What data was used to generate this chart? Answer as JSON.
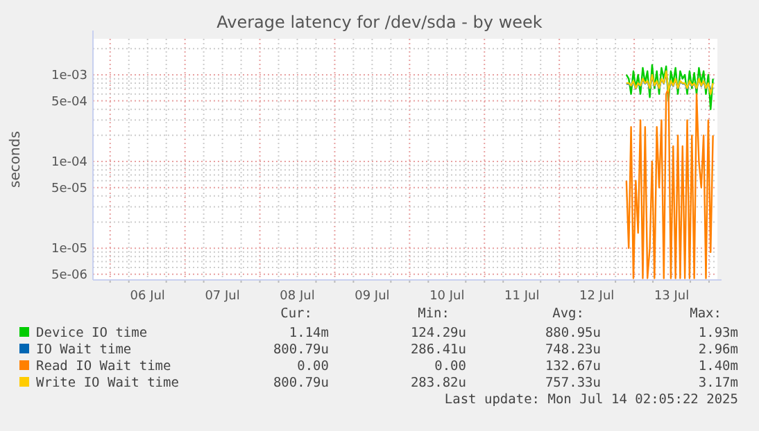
{
  "chart_data": {
    "type": "line",
    "title": "Average latency for /dev/sda - by week",
    "ylabel": "seconds",
    "log": "y",
    "grid": true,
    "legend": "bottom",
    "marker": "none",
    "line_style": "solid",
    "x": [
      "2025-07-12T21:30",
      "2025-07-12T22:15",
      "2025-07-12T23:00",
      "2025-07-12T23:45",
      "2025-07-13T00:30",
      "2025-07-13T01:15",
      "2025-07-13T02:00",
      "2025-07-13T02:45",
      "2025-07-13T03:30",
      "2025-07-13T04:15",
      "2025-07-13T05:00",
      "2025-07-13T05:45",
      "2025-07-13T06:30",
      "2025-07-13T07:15",
      "2025-07-13T08:00",
      "2025-07-13T08:45",
      "2025-07-13T09:30",
      "2025-07-13T10:15",
      "2025-07-13T11:00",
      "2025-07-13T11:45",
      "2025-07-13T12:30",
      "2025-07-13T13:15",
      "2025-07-13T14:00",
      "2025-07-13T14:45",
      "2025-07-13T15:30",
      "2025-07-13T16:15",
      "2025-07-13T17:00",
      "2025-07-13T17:45",
      "2025-07-13T18:30",
      "2025-07-13T19:15",
      "2025-07-13T20:00",
      "2025-07-13T20:45",
      "2025-07-13T21:30",
      "2025-07-13T22:15",
      "2025-07-13T23:00",
      "2025-07-13T23:45",
      "2025-07-14T00:30",
      "2025-07-14T01:15"
    ],
    "xlim": [
      "2025-07-05T18:30",
      "2025-07-14T02:40"
    ],
    "xticks": [
      {
        "value": "2025-07-06T00:00",
        "label": null
      },
      {
        "value": "2025-07-06T06:00",
        "label": null
      },
      {
        "value": "2025-07-06T12:00",
        "label": "06 Jul"
      },
      {
        "value": "2025-07-06T18:00",
        "label": null
      },
      {
        "value": "2025-07-07T00:00",
        "label": null
      },
      {
        "value": "2025-07-07T06:00",
        "label": null
      },
      {
        "value": "2025-07-07T12:00",
        "label": "07 Jul"
      },
      {
        "value": "2025-07-07T18:00",
        "label": null
      },
      {
        "value": "2025-07-08T00:00",
        "label": null
      },
      {
        "value": "2025-07-08T06:00",
        "label": null
      },
      {
        "value": "2025-07-08T12:00",
        "label": "08 Jul"
      },
      {
        "value": "2025-07-08T18:00",
        "label": null
      },
      {
        "value": "2025-07-09T00:00",
        "label": null
      },
      {
        "value": "2025-07-09T06:00",
        "label": null
      },
      {
        "value": "2025-07-09T12:00",
        "label": "09 Jul"
      },
      {
        "value": "2025-07-09T18:00",
        "label": null
      },
      {
        "value": "2025-07-10T00:00",
        "label": null
      },
      {
        "value": "2025-07-10T06:00",
        "label": null
      },
      {
        "value": "2025-07-10T12:00",
        "label": "10 Jul"
      },
      {
        "value": "2025-07-10T18:00",
        "label": null
      },
      {
        "value": "2025-07-11T00:00",
        "label": null
      },
      {
        "value": "2025-07-11T06:00",
        "label": null
      },
      {
        "value": "2025-07-11T12:00",
        "label": "11 Jul"
      },
      {
        "value": "2025-07-11T18:00",
        "label": null
      },
      {
        "value": "2025-07-12T00:00",
        "label": null
      },
      {
        "value": "2025-07-12T06:00",
        "label": null
      },
      {
        "value": "2025-07-12T12:00",
        "label": "12 Jul"
      },
      {
        "value": "2025-07-12T18:00",
        "label": null
      },
      {
        "value": "2025-07-13T00:00",
        "label": null
      },
      {
        "value": "2025-07-13T06:00",
        "label": null
      },
      {
        "value": "2025-07-13T12:00",
        "label": "13 Jul"
      },
      {
        "value": "2025-07-13T18:00",
        "label": null
      },
      {
        "value": "2025-07-14T00:00",
        "label": null
      }
    ],
    "ylim": [
      4.3e-06,
      0.0026
    ],
    "yticks": [
      {
        "value": 5e-06,
        "label": "5e-06"
      },
      {
        "value": 6e-06,
        "label": null
      },
      {
        "value": 7e-06,
        "label": null
      },
      {
        "value": 8e-06,
        "label": null
      },
      {
        "value": 9e-06,
        "label": null
      },
      {
        "value": 1e-05,
        "label": "1e-05"
      },
      {
        "value": 2e-05,
        "label": null
      },
      {
        "value": 3e-05,
        "label": null
      },
      {
        "value": 4e-05,
        "label": null
      },
      {
        "value": 5e-05,
        "label": "5e-05"
      },
      {
        "value": 6e-05,
        "label": null
      },
      {
        "value": 7e-05,
        "label": null
      },
      {
        "value": 8e-05,
        "label": null
      },
      {
        "value": 9e-05,
        "label": null
      },
      {
        "value": 0.0001,
        "label": "1e-04"
      },
      {
        "value": 0.0002,
        "label": null
      },
      {
        "value": 0.0003,
        "label": null
      },
      {
        "value": 0.0004,
        "label": null
      },
      {
        "value": 0.0005,
        "label": "5e-04"
      },
      {
        "value": 0.0006,
        "label": null
      },
      {
        "value": 0.0007,
        "label": null
      },
      {
        "value": 0.0008,
        "label": null
      },
      {
        "value": 0.0009,
        "label": null
      },
      {
        "value": 0.001,
        "label": "1e-03"
      },
      {
        "value": 0.002,
        "label": null
      }
    ],
    "series": [
      {
        "name": "Device IO time",
        "color": "#00cc00",
        "values": [
          0.001,
          0.0009,
          0.0006,
          0.0011,
          0.0007,
          0.001,
          0.0006,
          0.0012,
          0.0008,
          0.0011,
          0.00055,
          0.0013,
          0.0007,
          0.0011,
          0.0006,
          0.0012,
          0.0009,
          0.00125,
          0.0005,
          0.0011,
          0.0008,
          0.0012,
          0.0006,
          0.0011,
          0.0009,
          0.001,
          0.0006,
          0.0011,
          0.0007,
          0.00105,
          0.0006,
          0.0012,
          0.0008,
          0.0011,
          0.0006,
          0.001,
          0.0004,
          0.0009
        ]
      },
      {
        "name": "IO Wait time",
        "color": "#0066b3",
        "values": [
          0.00078,
          0.00079,
          0.00074,
          0.00084,
          0.00069,
          0.00079,
          0.00074,
          0.00089,
          0.00079,
          0.00084,
          0.00069,
          0.00098,
          0.00074,
          0.00084,
          0.00069,
          0.00089,
          0.00079,
          0.00105,
          0.00064,
          0.00084,
          0.00074,
          0.00089,
          0.00069,
          0.00084,
          0.00079,
          0.00079,
          0.00069,
          0.00084,
          0.00074,
          0.00079,
          0.00069,
          0.00089,
          0.00074,
          0.00084,
          0.00069,
          0.00079,
          0.00068,
          0.0007
        ]
      },
      {
        "name": "Read IO Wait time",
        "color": "#ff8000",
        "values": [
          6e-05,
          1e-05,
          0.00025,
          4.5e-06,
          6e-05,
          1.5e-05,
          0.0003,
          4.5e-06,
          0.00025,
          4.5e-06,
          1e-05,
          0.0001,
          4.5e-06,
          0.00025,
          5e-05,
          0.0003,
          4.5e-06,
          0.0006,
          0.0007,
          4.5e-06,
          0.00015,
          4.5e-06,
          0.0002,
          4.5e-06,
          0.00015,
          4.5e-06,
          0.0003,
          4.5e-06,
          0.0002,
          4.5e-06,
          0.0006,
          0.0001,
          5e-05,
          0.0002,
          4.5e-06,
          0.0003,
          9e-06,
          0.0002
        ]
      },
      {
        "name": "Write IO Wait time",
        "color": "#ffcc00",
        "values": [
          0.0008,
          0.0008,
          0.00075,
          0.00085,
          0.0007,
          0.0008,
          0.00075,
          0.0009,
          0.0008,
          0.00085,
          0.0007,
          0.001,
          0.00075,
          0.00085,
          0.0007,
          0.0009,
          0.0008,
          0.0011,
          0.00065,
          0.00085,
          0.00075,
          0.0009,
          0.0007,
          0.00085,
          0.0008,
          0.0008,
          0.0007,
          0.00085,
          0.00075,
          0.0008,
          0.0007,
          0.0009,
          0.00075,
          0.00085,
          0.0007,
          0.0008,
          0.0006,
          0.0008
        ]
      }
    ],
    "annotations": [
      "Cur:",
      "Min:",
      "Avg:",
      "Max:",
      "1.14m",
      "124.29u",
      "880.95u",
      "1.93m",
      "800.79u",
      "286.41u",
      "748.23u",
      "2.96m",
      "0.00",
      "0.00",
      "132.67u",
      "1.40m",
      "800.79u",
      "283.82u",
      "757.33u",
      "3.17m",
      "Last update: Mon Jul 14 02:05:22 2025"
    ]
  }
}
